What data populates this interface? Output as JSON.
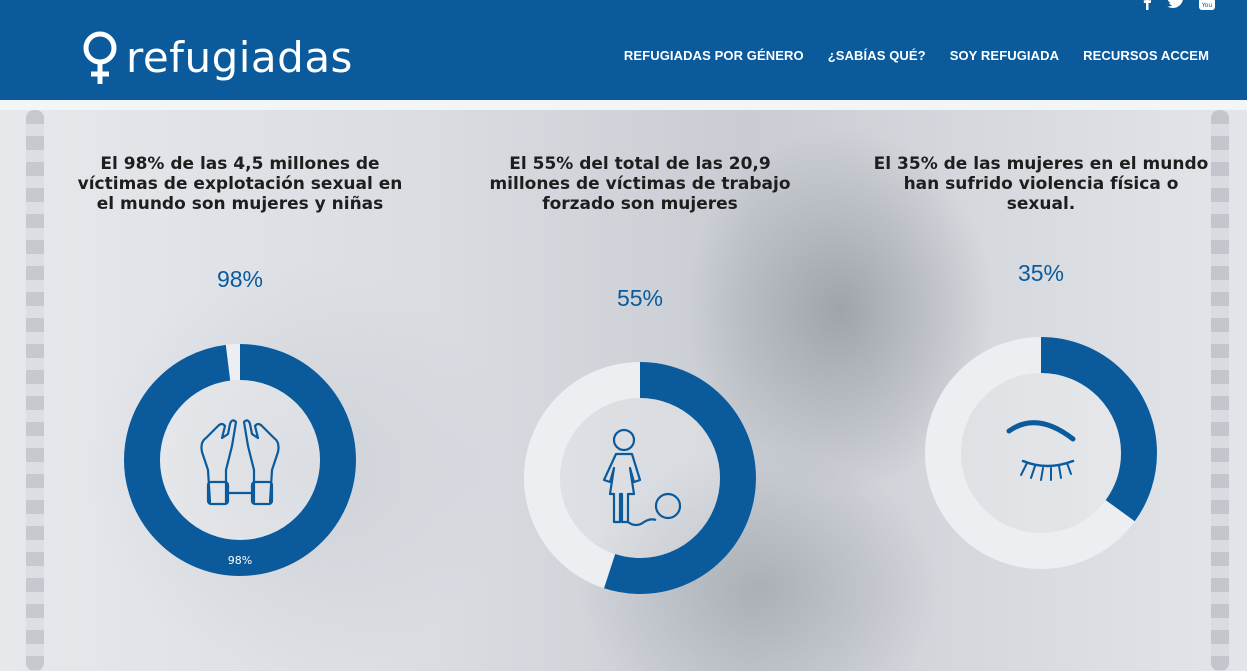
{
  "header": {
    "logo_text": "refugiadas",
    "nav": [
      {
        "label": "REFUGIADAS POR GÉNERO"
      },
      {
        "label": "¿SABÍAS QUÉ?"
      },
      {
        "label": "SOY REFUGIADA"
      },
      {
        "label": "RECURSOS ACCEM"
      }
    ],
    "social": [
      "facebook-icon",
      "twitter-icon",
      "youtube-icon"
    ]
  },
  "stats": [
    {
      "text": "El 98% de las 4,5 millones de víctimas de explotación sexual en el mundo son mujeres y niñas",
      "percent_label": "98%",
      "inner_label": "98%",
      "value": 98,
      "icon": "cuffed-hands-icon"
    },
    {
      "text": "El 55% del total de las 20,9 millones de víctimas de trabajo forzado son mujeres",
      "percent_label": "55%",
      "value": 55,
      "icon": "woman-ball-chain-icon"
    },
    {
      "text": "El 35% de las mujeres en el mundo han sufrido violencia física o sexual.",
      "percent_label": "35%",
      "value": 35,
      "icon": "closed-eye-icon"
    }
  ],
  "colors": {
    "header_bg": "#0a5a9c",
    "accent": "#0a5a9c",
    "ring_track": "#eceef1"
  },
  "chart_data": [
    {
      "type": "pie",
      "values": [
        98,
        2
      ],
      "categories": [
        "98%",
        ""
      ]
    },
    {
      "type": "pie",
      "values": [
        55,
        45
      ],
      "categories": [
        "55%",
        ""
      ]
    },
    {
      "type": "pie",
      "values": [
        35,
        65
      ],
      "categories": [
        "35%",
        ""
      ]
    }
  ]
}
